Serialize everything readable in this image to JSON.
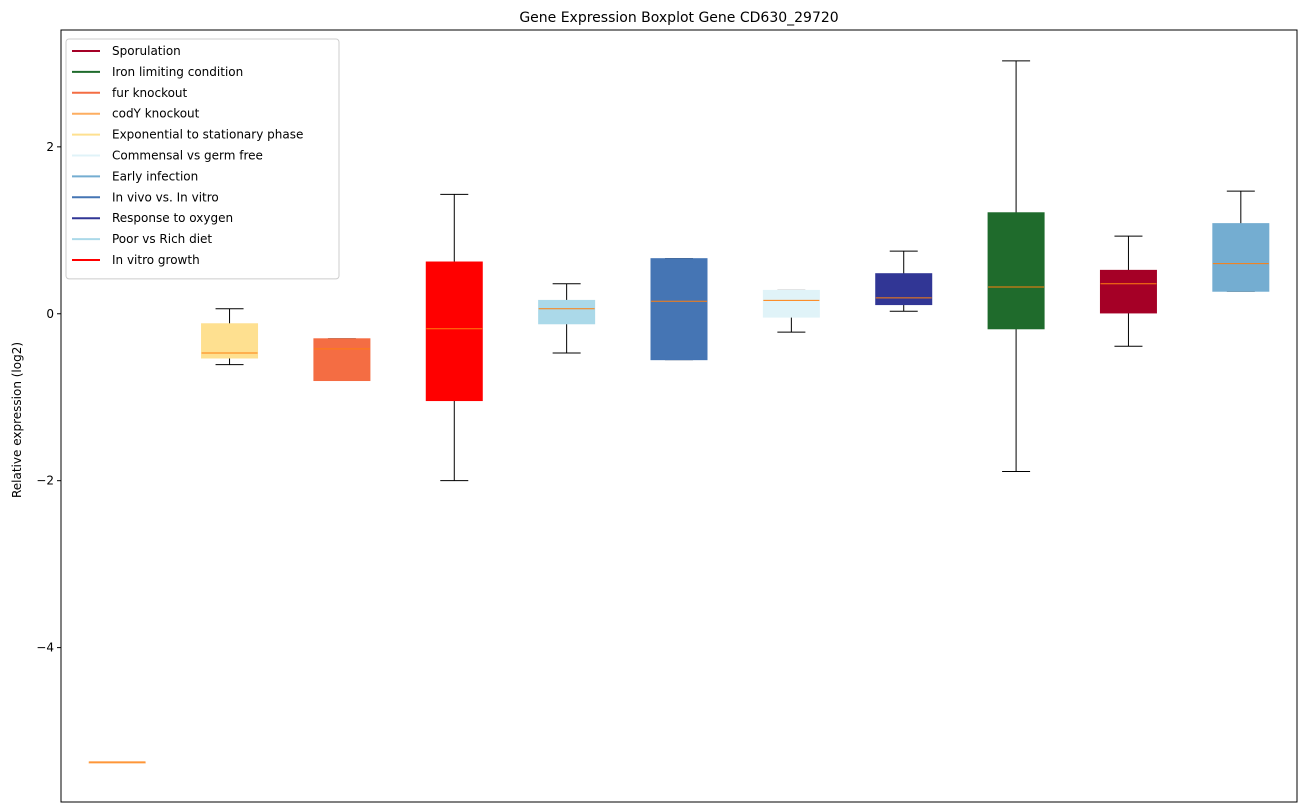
{
  "chart_data": {
    "type": "boxplot",
    "title": "Gene Expression Boxplot Gene CD630_29720",
    "xlabel": "",
    "ylabel": "Relative expression (log2)",
    "ylim": [
      -5.85,
      3.4
    ],
    "yticks": [
      {
        "value": 2,
        "label": "2"
      },
      {
        "value": 0,
        "label": "0"
      },
      {
        "value": -2,
        "label": "−2"
      },
      {
        "value": -4,
        "label": "−4"
      }
    ],
    "grid": false,
    "legend_position": "top-left",
    "legend": [
      {
        "label": "Sporulation",
        "color": "#a50026"
      },
      {
        "label": "Iron limiting condition",
        "color": "#1f6b2c"
      },
      {
        "label": "fur knockout",
        "color": "#f46d43"
      },
      {
        "label": "codY knockout",
        "color": "#fdae61"
      },
      {
        "label": "Exponential to stationary phase",
        "color": "#fee090"
      },
      {
        "label": "Commensal vs germ free",
        "color": "#e0f3f8"
      },
      {
        "label": "Early infection",
        "color": "#74add1"
      },
      {
        "label": "In vivo vs. In vitro",
        "color": "#4575b4"
      },
      {
        "label": "Response to oxygen",
        "color": "#313695"
      },
      {
        "label": "Poor vs Rich diet",
        "color": "#abd9e9"
      },
      {
        "label": "In vitro growth",
        "color": "#ff0000"
      }
    ],
    "median_color": "#ff7f0e",
    "boxes": [
      {
        "color": "#fdae61",
        "whisker_low": -5.37,
        "q1": -5.37,
        "median": -5.37,
        "q3": -5.37,
        "whisker_high": -5.37
      },
      {
        "color": "#fee090",
        "whisker_low": -0.61,
        "q1": -0.53,
        "median": -0.47,
        "q3": -0.12,
        "whisker_high": 0.06
      },
      {
        "color": "#f46d43",
        "whisker_low": -0.8,
        "q1": -0.8,
        "median": -0.42,
        "q3": -0.3,
        "whisker_high": -0.3
      },
      {
        "color": "#ff0000",
        "whisker_low": -2.0,
        "q1": -1.04,
        "median": -0.18,
        "q3": 0.62,
        "whisker_high": 1.43
      },
      {
        "color": "#abd9e9",
        "whisker_low": -0.47,
        "q1": -0.12,
        "median": 0.06,
        "q3": 0.16,
        "whisker_high": 0.36
      },
      {
        "color": "#4575b4",
        "whisker_low": -0.55,
        "q1": -0.55,
        "median": 0.15,
        "q3": 0.66,
        "whisker_high": 0.66
      },
      {
        "color": "#e0f3f8",
        "whisker_low": -0.22,
        "q1": -0.04,
        "median": 0.16,
        "q3": 0.28,
        "whisker_high": 0.28
      },
      {
        "color": "#313695",
        "whisker_low": 0.03,
        "q1": 0.11,
        "median": 0.19,
        "q3": 0.48,
        "whisker_high": 0.75
      },
      {
        "color": "#1f6b2c",
        "whisker_low": -1.89,
        "q1": -0.18,
        "median": 0.32,
        "q3": 1.21,
        "whisker_high": 3.03
      },
      {
        "color": "#a50026",
        "whisker_low": -0.39,
        "q1": 0.01,
        "median": 0.36,
        "q3": 0.52,
        "whisker_high": 0.93
      },
      {
        "color": "#74add1",
        "whisker_low": 0.27,
        "q1": 0.27,
        "median": 0.6,
        "q3": 1.08,
        "whisker_high": 1.47
      }
    ]
  }
}
